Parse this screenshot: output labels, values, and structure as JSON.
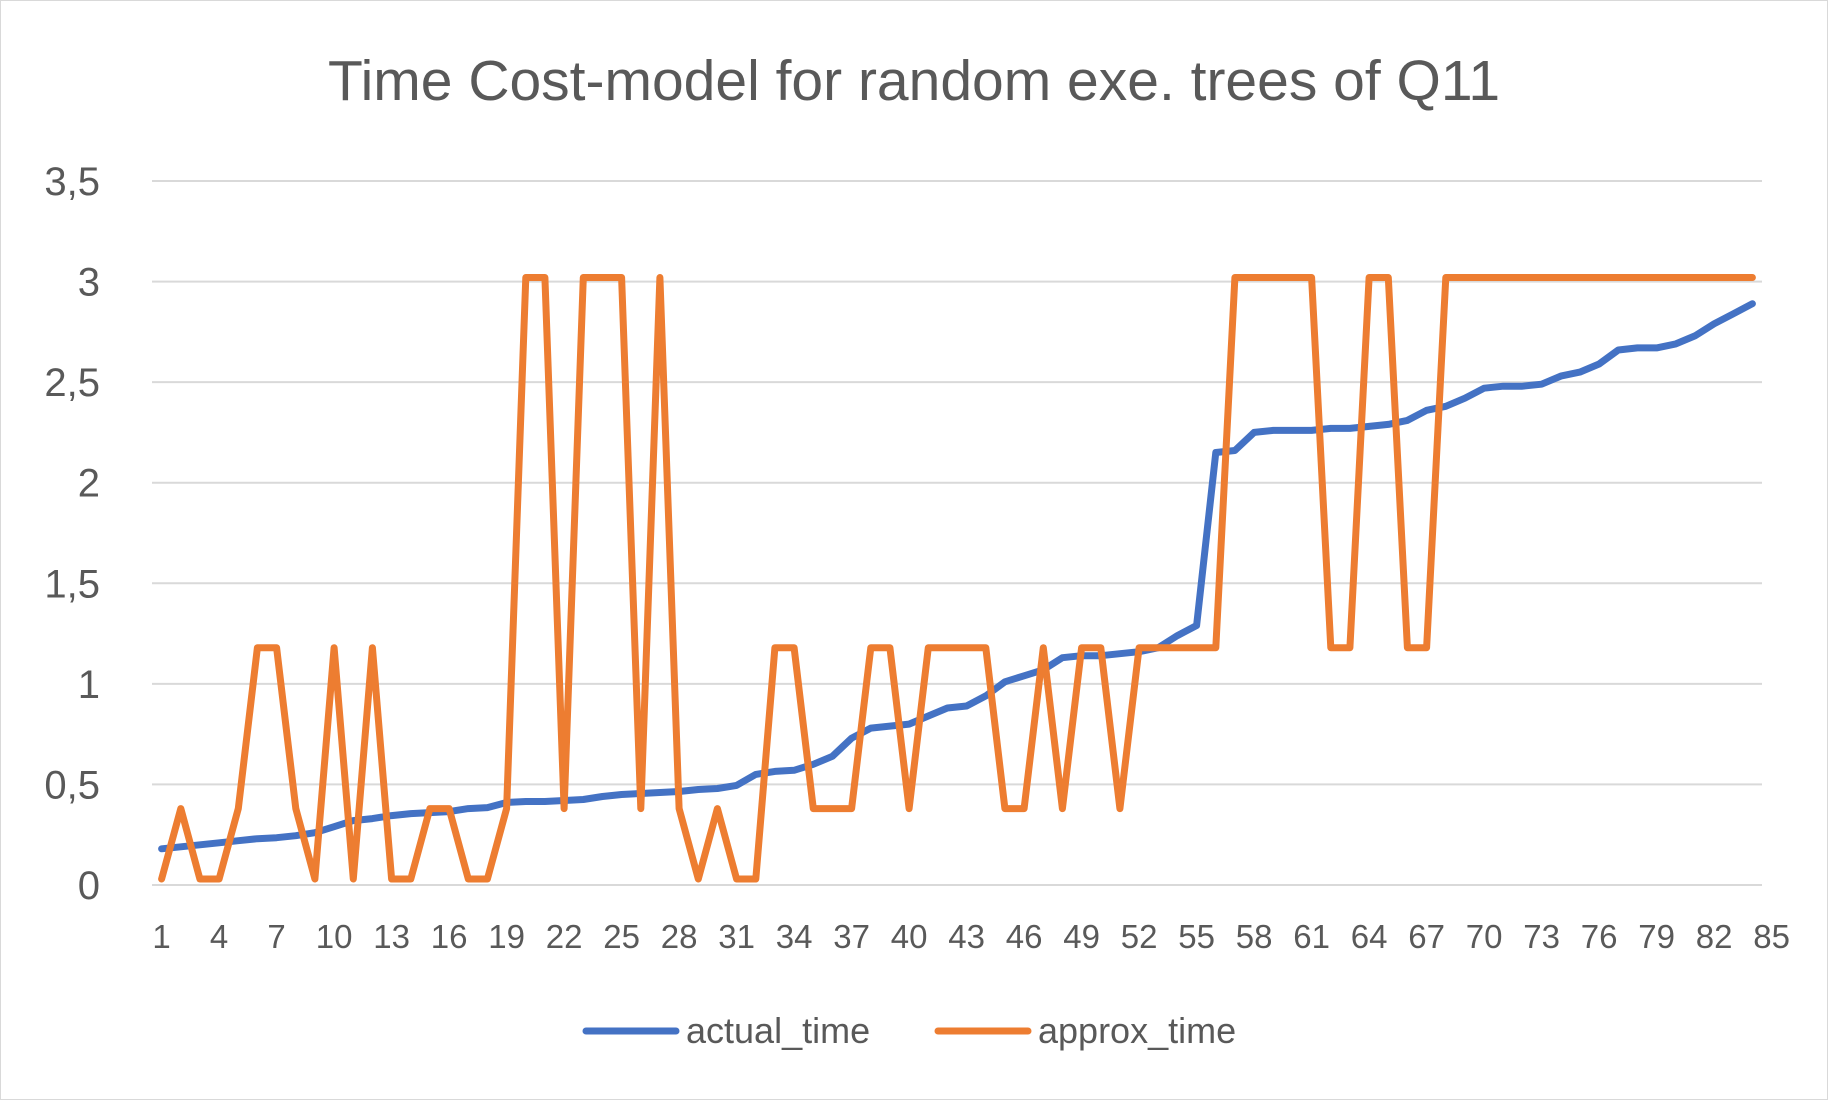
{
  "chart_data": {
    "type": "line",
    "title": "Time Cost-model for random exe. trees of Q11",
    "xlabel": "",
    "ylabel": "",
    "ylim": [
      0,
      3.5
    ],
    "y_ticks": [
      "0",
      "0,5",
      "1",
      "1,5",
      "2",
      "2,5",
      "3",
      "3,5"
    ],
    "x_ticks": [
      "1",
      "4",
      "7",
      "10",
      "13",
      "16",
      "19",
      "22",
      "25",
      "28",
      "31",
      "34",
      "37",
      "40",
      "43",
      "46",
      "49",
      "52",
      "55",
      "58",
      "61",
      "64",
      "67",
      "70",
      "73",
      "76",
      "79",
      "82",
      "85"
    ],
    "grid": true,
    "legend_position": "bottom",
    "x": [
      1,
      2,
      3,
      4,
      5,
      6,
      7,
      8,
      9,
      10,
      11,
      12,
      13,
      14,
      15,
      16,
      17,
      18,
      19,
      20,
      21,
      22,
      23,
      24,
      25,
      26,
      27,
      28,
      29,
      30,
      31,
      32,
      33,
      34,
      35,
      36,
      37,
      38,
      39,
      40,
      41,
      42,
      43,
      44,
      45,
      46,
      47,
      48,
      49,
      50,
      51,
      52,
      53,
      54,
      55,
      56,
      57,
      58,
      59,
      60,
      61,
      62,
      63,
      64,
      65,
      66,
      67,
      68,
      69,
      70,
      71,
      72,
      73,
      74,
      75,
      76,
      77,
      78,
      79,
      80,
      81,
      82,
      83,
      84
    ],
    "series": [
      {
        "name": "actual_time",
        "color": "#4472C4",
        "values": [
          0.18,
          0.19,
          0.2,
          0.21,
          0.22,
          0.23,
          0.235,
          0.245,
          0.26,
          0.29,
          0.32,
          0.33,
          0.345,
          0.355,
          0.36,
          0.365,
          0.38,
          0.385,
          0.41,
          0.415,
          0.415,
          0.42,
          0.425,
          0.44,
          0.45,
          0.455,
          0.46,
          0.465,
          0.475,
          0.48,
          0.495,
          0.55,
          0.565,
          0.57,
          0.6,
          0.64,
          0.73,
          0.78,
          0.79,
          0.8,
          0.84,
          0.88,
          0.89,
          0.94,
          1.01,
          1.04,
          1.07,
          1.13,
          1.14,
          1.14,
          1.15,
          1.16,
          1.18,
          1.24,
          1.29,
          2.15,
          2.16,
          2.25,
          2.26,
          2.26,
          2.26,
          2.27,
          2.27,
          2.28,
          2.29,
          2.31,
          2.36,
          2.38,
          2.42,
          2.47,
          2.48,
          2.48,
          2.49,
          2.53,
          2.55,
          2.59,
          2.66,
          2.67,
          2.67,
          2.69,
          2.73,
          2.79,
          2.84,
          2.89
        ]
      },
      {
        "name": "approx_time",
        "color": "#ED7D31",
        "values": [
          0.03,
          0.38,
          0.03,
          0.03,
          0.38,
          1.18,
          1.18,
          0.38,
          0.03,
          1.18,
          0.03,
          1.18,
          0.03,
          0.03,
          0.38,
          0.38,
          0.03,
          0.03,
          0.38,
          3.02,
          3.02,
          0.38,
          3.02,
          3.02,
          3.02,
          0.38,
          3.02,
          0.38,
          0.03,
          0.38,
          0.03,
          0.03,
          1.18,
          1.18,
          0.38,
          0.38,
          0.38,
          1.18,
          1.18,
          0.38,
          1.18,
          1.18,
          1.18,
          1.18,
          0.38,
          0.38,
          1.18,
          0.38,
          1.18,
          1.18,
          0.38,
          1.18,
          1.18,
          1.18,
          1.18,
          1.18,
          3.02,
          3.02,
          3.02,
          3.02,
          3.02,
          1.18,
          1.18,
          3.02,
          3.02,
          1.18,
          1.18,
          3.02,
          3.02,
          3.02,
          3.02,
          3.02,
          3.02,
          3.02,
          3.02,
          3.02,
          3.02,
          3.02,
          3.02,
          3.02,
          3.02,
          3.02,
          3.02,
          3.02
        ]
      }
    ]
  }
}
